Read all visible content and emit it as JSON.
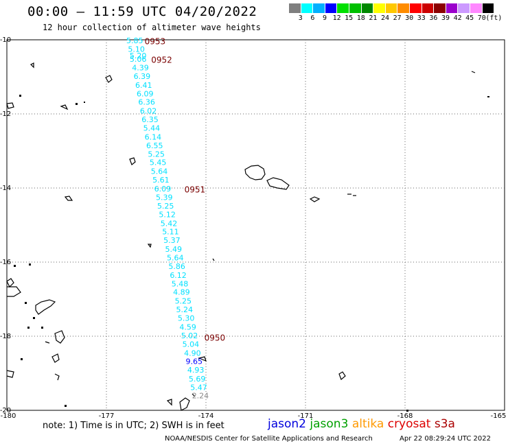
{
  "title": "00:00 – 11:59 UTC 04/20/2022",
  "subtitle": "12 hour collection of altimeter wave heights",
  "legend": {
    "colors": [
      "#7f7f7f",
      "#00ffff",
      "#00b0ff",
      "#0000ff",
      "#00e000",
      "#00c000",
      "#008800",
      "#ffff00",
      "#ffc800",
      "#ff8c00",
      "#ff0000",
      "#cc0000",
      "#8b0000",
      "#9b00cc",
      "#cc99ff",
      "#ff88ff",
      "#000000"
    ],
    "labels": [
      "3",
      "6",
      "9",
      "12",
      "15",
      "18",
      "21",
      "24",
      "27",
      "30",
      "33",
      "36",
      "39",
      "42",
      "45",
      "70",
      "(ft)"
    ]
  },
  "axes": {
    "lat_labels": [
      "-10",
      "-12",
      "-14",
      "-16",
      "-18",
      "-20"
    ],
    "lon_labels": [
      "-180",
      "-177",
      "-174",
      "-171",
      "-168",
      "-165"
    ]
  },
  "passes": [
    {
      "id": "0953",
      "lon": -175.85,
      "lat": -10.05
    },
    {
      "id": "0952",
      "lon": -175.65,
      "lat": -10.55
    },
    {
      "id": "0951",
      "lon": -174.65,
      "lat": -14.05
    },
    {
      "id": "0950",
      "lon": -174.05,
      "lat": -18.05
    }
  ],
  "observations": [
    {
      "v": "5.85",
      "lon": -176.4,
      "lat": -10.02,
      "c": "cyan"
    },
    {
      "v": "5.10",
      "lon": -176.35,
      "lat": -10.25,
      "c": "cyan"
    },
    {
      "v": "5.20",
      "lon": -176.3,
      "lat": -10.43,
      "c": "cyan"
    },
    {
      "v": "5.06",
      "lon": -176.3,
      "lat": -10.52,
      "c": "cyan"
    },
    {
      "v": "4.39",
      "lon": -176.23,
      "lat": -10.75,
      "c": "cyan"
    },
    {
      "v": "6.39",
      "lon": -176.18,
      "lat": -10.98,
      "c": "cyan"
    },
    {
      "v": "6.41",
      "lon": -176.13,
      "lat": -11.22,
      "c": "cyan"
    },
    {
      "v": "6.09",
      "lon": -176.09,
      "lat": -11.45,
      "c": "cyan"
    },
    {
      "v": "6.36",
      "lon": -176.04,
      "lat": -11.68,
      "c": "cyan"
    },
    {
      "v": "6.02",
      "lon": -175.99,
      "lat": -11.92,
      "c": "cyan"
    },
    {
      "v": "6.35",
      "lon": -175.94,
      "lat": -12.15,
      "c": "cyan"
    },
    {
      "v": "5.44",
      "lon": -175.89,
      "lat": -12.38,
      "c": "cyan"
    },
    {
      "v": "6.14",
      "lon": -175.85,
      "lat": -12.62,
      "c": "cyan"
    },
    {
      "v": "6.55",
      "lon": -175.8,
      "lat": -12.85,
      "c": "cyan"
    },
    {
      "v": "5.25",
      "lon": -175.75,
      "lat": -13.08,
      "c": "cyan"
    },
    {
      "v": "5.45",
      "lon": -175.7,
      "lat": -13.31,
      "c": "cyan"
    },
    {
      "v": "5.64",
      "lon": -175.66,
      "lat": -13.55,
      "c": "cyan"
    },
    {
      "v": "5.61",
      "lon": -175.61,
      "lat": -13.78,
      "c": "cyan"
    },
    {
      "v": "6.09",
      "lon": -175.56,
      "lat": -14.02,
      "c": "cyan"
    },
    {
      "v": "5.39",
      "lon": -175.51,
      "lat": -14.25,
      "c": "cyan"
    },
    {
      "v": "5.25",
      "lon": -175.47,
      "lat": -14.48,
      "c": "cyan"
    },
    {
      "v": "5.12",
      "lon": -175.42,
      "lat": -14.71,
      "c": "cyan"
    },
    {
      "v": "5.42",
      "lon": -175.37,
      "lat": -14.95,
      "c": "cyan"
    },
    {
      "v": "5.11",
      "lon": -175.32,
      "lat": -15.18,
      "c": "cyan"
    },
    {
      "v": "5.37",
      "lon": -175.28,
      "lat": -15.41,
      "c": "cyan"
    },
    {
      "v": "5.49",
      "lon": -175.23,
      "lat": -15.65,
      "c": "cyan"
    },
    {
      "v": "5.64",
      "lon": -175.18,
      "lat": -15.88,
      "c": "cyan"
    },
    {
      "v": "5.86",
      "lon": -175.13,
      "lat": -16.11,
      "c": "cyan"
    },
    {
      "v": "6.12",
      "lon": -175.09,
      "lat": -16.35,
      "c": "cyan"
    },
    {
      "v": "5.48",
      "lon": -175.04,
      "lat": -16.58,
      "c": "cyan"
    },
    {
      "v": "4.89",
      "lon": -174.99,
      "lat": -16.81,
      "c": "cyan"
    },
    {
      "v": "5.25",
      "lon": -174.94,
      "lat": -17.05,
      "c": "cyan"
    },
    {
      "v": "5.24",
      "lon": -174.9,
      "lat": -17.28,
      "c": "cyan"
    },
    {
      "v": "5.30",
      "lon": -174.85,
      "lat": -17.51,
      "c": "cyan"
    },
    {
      "v": "4.59",
      "lon": -174.8,
      "lat": -17.75,
      "c": "cyan"
    },
    {
      "v": "5.02",
      "lon": -174.75,
      "lat": -17.98,
      "c": "cyan"
    },
    {
      "v": "5.04",
      "lon": -174.71,
      "lat": -18.21,
      "c": "cyan"
    },
    {
      "v": "4.90",
      "lon": -174.66,
      "lat": -18.45,
      "c": "cyan"
    },
    {
      "v": "9.65",
      "lon": -174.61,
      "lat": -18.68,
      "c": "blue"
    },
    {
      "v": "4.93",
      "lon": -174.56,
      "lat": -18.91,
      "c": "cyan"
    },
    {
      "v": "5.69",
      "lon": -174.52,
      "lat": -19.15,
      "c": "cyan"
    },
    {
      "v": "5.47",
      "lon": -174.47,
      "lat": -19.38,
      "c": "cyan"
    },
    {
      "v": "2.24",
      "lon": -174.42,
      "lat": -19.6,
      "c": "gray"
    }
  ],
  "note": "note: 1) Time is in UTC; 2) SWH is in feet",
  "satellites": [
    {
      "name": "jason2",
      "color": "#0000dd"
    },
    {
      "name": "jason3",
      "color": "#00a000"
    },
    {
      "name": "altika",
      "color": "#ff9900"
    },
    {
      "name": "cryosat",
      "color": "#dd0000"
    },
    {
      "name": "s3a",
      "color": "#aa0000"
    }
  ],
  "credit": "NOAA/NESDIS Center for Satellite Applications and Research",
  "timestamp": "Apr 22 08:29:24 UTC 2022"
}
